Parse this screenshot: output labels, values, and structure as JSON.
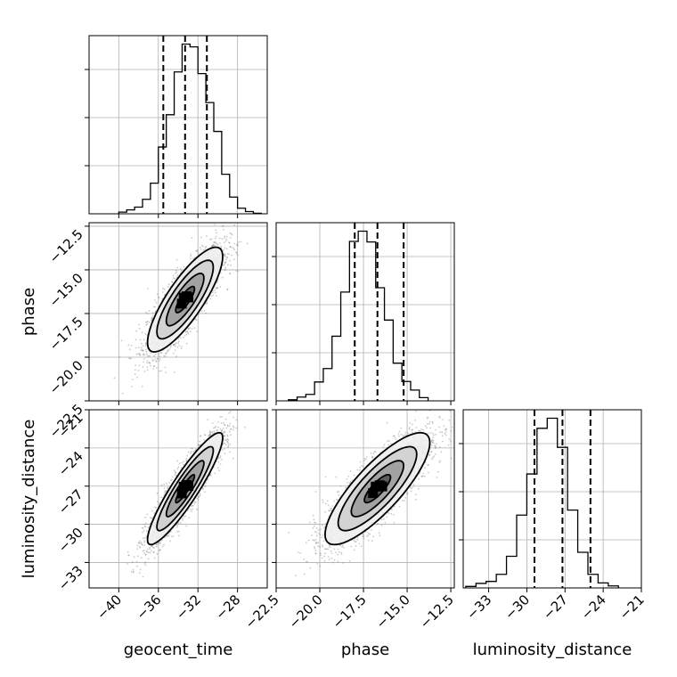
{
  "chart_data": {
    "type": "corner",
    "parameters": [
      "geocent_time",
      "phase",
      "luminosity_distance"
    ],
    "axis_labels": {
      "x": [
        "geocent_time",
        "phase",
        "luminosity_distance"
      ],
      "y": [
        "",
        "phase",
        "luminosity_distance"
      ]
    },
    "ranges": {
      "geocent_time": [
        -43,
        -25
      ],
      "phase": [
        -22.5,
        -12.3
      ],
      "luminosity_distance": [
        -35,
        -21
      ]
    },
    "ticks": {
      "geocent_time": [
        -40,
        -36,
        -32,
        -28
      ],
      "phase_y": [
        -12.5,
        -15.0,
        -17.5,
        -20.0,
        -22.5
      ],
      "phase_x": [
        -22.5,
        -20.0,
        -17.5,
        -15.0,
        -12.5
      ],
      "luminosity_distance_y": [
        -21,
        -24,
        -27,
        -30,
        -33
      ],
      "luminosity_distance_x": [
        -33,
        -30,
        -27,
        -24,
        -21
      ]
    },
    "tick_text": {
      "geocent_time": [
        "−40",
        "−36",
        "−32",
        "−28"
      ],
      "phase_y": [
        "−12.5",
        "−15.0",
        "−17.5",
        "−20.0",
        "−22.5"
      ],
      "phase_x": [
        "−22.5",
        "−20.0",
        "−17.5",
        "−15.0",
        "−12.5"
      ],
      "luminosity_distance_y": [
        "−21",
        "−24",
        "−27",
        "−30",
        "−33"
      ],
      "luminosity_distance_x": [
        "−33",
        "−30",
        "−27",
        "−24",
        "−21"
      ]
    },
    "quantiles": {
      "geocent_time": [
        -35.5,
        -33.3,
        -31.1
      ],
      "phase": [
        -18.0,
        -16.7,
        -15.2
      ],
      "luminosity_distance": [
        -29.4,
        -27.2,
        -25.0
      ]
    },
    "histograms": {
      "geocent_time": {
        "edges_start": -40.0,
        "bin_width": 0.8,
        "counts": [
          3,
          7,
          12,
          26,
          55,
          120,
          178,
          255,
          305,
          300,
          252,
          200,
          148,
          71,
          30,
          10,
          4,
          1
        ]
      },
      "phase": {
        "edges_start": -21.8,
        "bin_width": 0.5,
        "counts": [
          2,
          7,
          12,
          35,
          60,
          120,
          202,
          296,
          315,
          295,
          210,
          150,
          70,
          36,
          20,
          6
        ]
      },
      "luminosity_distance": {
        "edges_start": -34.8,
        "bin_width": 0.8,
        "counts": [
          3,
          9,
          13,
          27,
          63,
          145,
          227,
          318,
          338,
          280,
          155,
          71,
          27,
          10,
          4
        ]
      }
    },
    "pairs": [
      {
        "x": "geocent_time",
        "y": "phase",
        "mean": [
          -33.3,
          -16.7
        ],
        "sd": [
          1.9,
          1.5
        ],
        "rho": 0.82
      },
      {
        "x": "geocent_time",
        "y": "luminosity_distance",
        "mean": [
          -33.3,
          -27.2
        ],
        "sd": [
          1.9,
          2.2
        ],
        "rho": 0.91
      },
      {
        "x": "phase",
        "y": "luminosity_distance",
        "mean": [
          -16.7,
          -27.2
        ],
        "sd": [
          1.5,
          2.2
        ],
        "rho": 0.82
      }
    ],
    "grid": true,
    "contour_levels_sigma": [
      0.5,
      1.0,
      1.5,
      2.0
    ]
  }
}
